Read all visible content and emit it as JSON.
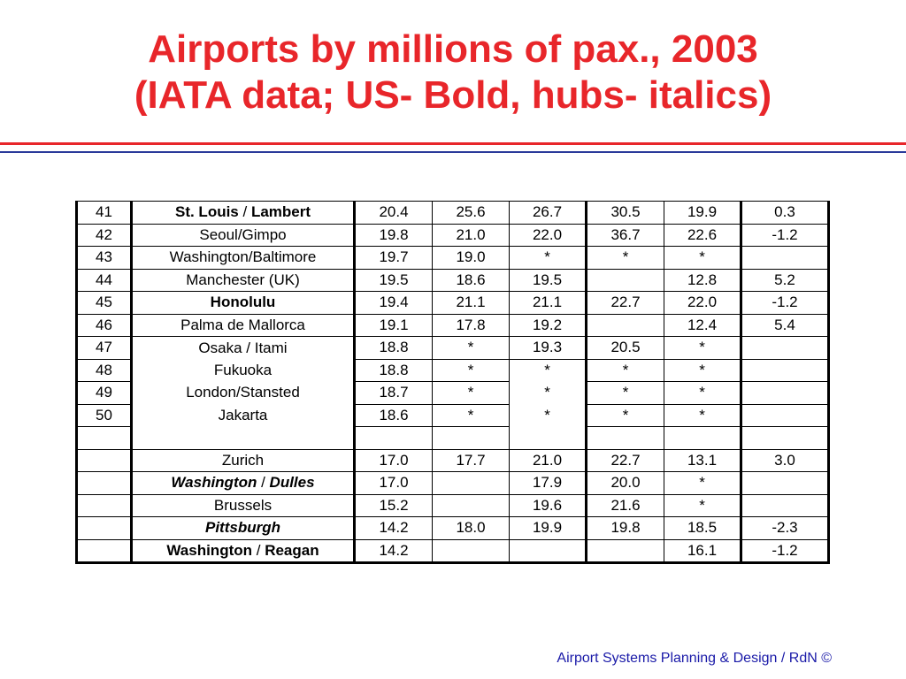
{
  "title": {
    "line1": "Airports by millions of pax., 2003",
    "line2": "(IATA data; US- Bold, hubs- italics)"
  },
  "colors": {
    "title": "#e8262a",
    "rule_red": "#e8262a",
    "rule_blue": "#2a3a9a",
    "footer": "#1a1aa8"
  },
  "table": {
    "rows": [
      {
        "rank": "41",
        "name_a": "St. Louis",
        "sep": " / ",
        "name_b": "Lambert",
        "style": "bold",
        "c1": "20.4",
        "c2": "25.6",
        "c3": "26.7",
        "c4": "30.5",
        "c5": "19.9",
        "c6": "0.3"
      },
      {
        "rank": "42",
        "name": "Seoul/Gimpo",
        "style": "normal",
        "c1": "19.8",
        "c2": "21.0",
        "c3": "22.0",
        "c4": "36.7",
        "c5": "22.6",
        "c6": "-1.2"
      },
      {
        "rank": "43",
        "name": "Washington/Baltimore",
        "style": "normal",
        "c1": "19.7",
        "c2": "19.0",
        "c3": "*",
        "c4": "*",
        "c5": "*",
        "c6": ""
      },
      {
        "rank": "44",
        "name": "Manchester (UK)",
        "style": "normal",
        "c1": "19.5",
        "c2": "18.6",
        "c3": "19.5",
        "c4": "",
        "c5": "12.8",
        "c6": "5.2"
      },
      {
        "rank": "45",
        "name": "Honolulu",
        "style": "bold",
        "c1": "19.4",
        "c2": "21.1",
        "c3": "21.1",
        "c4": "22.7",
        "c5": "22.0",
        "c6": "-1.2"
      },
      {
        "rank": "46",
        "name": "Palma de Mallorca",
        "style": "normal",
        "c1": "19.1",
        "c2": "17.8",
        "c3": "19.2",
        "c4": "",
        "c5": "12.4",
        "c6": "5.4"
      },
      {
        "rank": "47",
        "name": "Osaka / Itami",
        "style": "normal",
        "c1": "18.8",
        "c2": "*",
        "c3": "19.3",
        "c4": "20.5",
        "c5": "*",
        "c6": ""
      },
      {
        "rank": "48",
        "name": "Fukuoka",
        "style": "normal",
        "c1": "18.8",
        "c2": "*",
        "c3": "*",
        "c4": "*",
        "c5": "*",
        "c6": ""
      },
      {
        "rank": "49",
        "name": "London/Stansted",
        "style": "normal",
        "c1": "18.7",
        "c2": "*",
        "c3": "*",
        "c4": "*",
        "c5": "*",
        "c6": ""
      },
      {
        "rank": "50",
        "name": "Jakarta",
        "style": "normal",
        "c1": "18.6",
        "c2": "*",
        "c3": "*",
        "c4": "*",
        "c5": "*",
        "c6": ""
      },
      {
        "rank": "",
        "name": "",
        "style": "normal",
        "c1": "",
        "c2": "",
        "c3": "",
        "c4": "",
        "c5": "",
        "c6": ""
      },
      {
        "rank": "",
        "name": "Zurich",
        "style": "normal",
        "c1": "17.0",
        "c2": "17.7",
        "c3": "21.0",
        "c4": "22.7",
        "c5": "13.1",
        "c6": "3.0"
      },
      {
        "rank": "",
        "name_a": "Washington",
        "sep": " / ",
        "name_b": "Dulles",
        "style": "bolditalic",
        "c1": "17.0",
        "c2": "",
        "c3": "17.9",
        "c4": "20.0",
        "c5": "*",
        "c6": ""
      },
      {
        "rank": "",
        "name": "Brussels",
        "style": "normal",
        "c1": "15.2",
        "c2": "",
        "c3": "19.6",
        "c4": "21.6",
        "c5": "*",
        "c6": ""
      },
      {
        "rank": "",
        "name": "Pittsburgh",
        "style": "bolditalic",
        "c1": "14.2",
        "c2": "18.0",
        "c3": "19.9",
        "c4": "19.8",
        "c5": "18.5",
        "c6": "-2.3"
      },
      {
        "rank": "",
        "name_a": "Washington",
        "sep": " / ",
        "name_b": "Reagan",
        "style": "bold",
        "c1": "14.2",
        "c2": "",
        "c3": "",
        "c4": "",
        "c5": "16.1",
        "c6": "-1.2"
      }
    ]
  },
  "footer": "Airport Systems Planning & Design / RdN ©"
}
